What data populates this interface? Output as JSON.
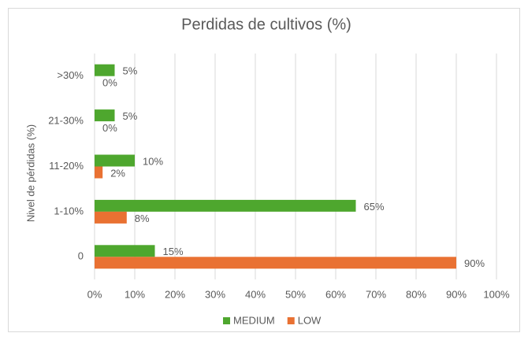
{
  "chart_data": {
    "type": "barh",
    "title": "Perdidas de cultivos (%)",
    "y_label": "Nivel de pérdidas (%)",
    "categories": [
      "0",
      "1-10%",
      "11-20%",
      "21-30%",
      ">30%"
    ],
    "series": [
      {
        "name": "MEDIUM",
        "color": "#4ea72e",
        "values": [
          15,
          65,
          10,
          5,
          5
        ],
        "value_labels": [
          "15%",
          "65%",
          "10%",
          "5%",
          "5%"
        ]
      },
      {
        "name": "LOW",
        "color": "#e97132",
        "values": [
          90,
          8,
          2,
          0,
          0
        ],
        "value_labels": [
          "90%",
          "8%",
          "2%",
          "0%",
          "0%"
        ]
      }
    ],
    "xlim": [
      0,
      100
    ],
    "xticks": [
      {
        "value": 0,
        "label": "0%"
      },
      {
        "value": 10,
        "label": "10%"
      },
      {
        "value": 20,
        "label": "20%"
      },
      {
        "value": 30,
        "label": "30%"
      },
      {
        "value": 40,
        "label": "40%"
      },
      {
        "value": 50,
        "label": "50%"
      },
      {
        "value": 60,
        "label": "60%"
      },
      {
        "value": 70,
        "label": "70%"
      },
      {
        "value": 80,
        "label": "80%"
      },
      {
        "value": 90,
        "label": "90%"
      },
      {
        "value": 100,
        "label": "100%"
      }
    ],
    "grid": true,
    "legend": "bottom"
  }
}
